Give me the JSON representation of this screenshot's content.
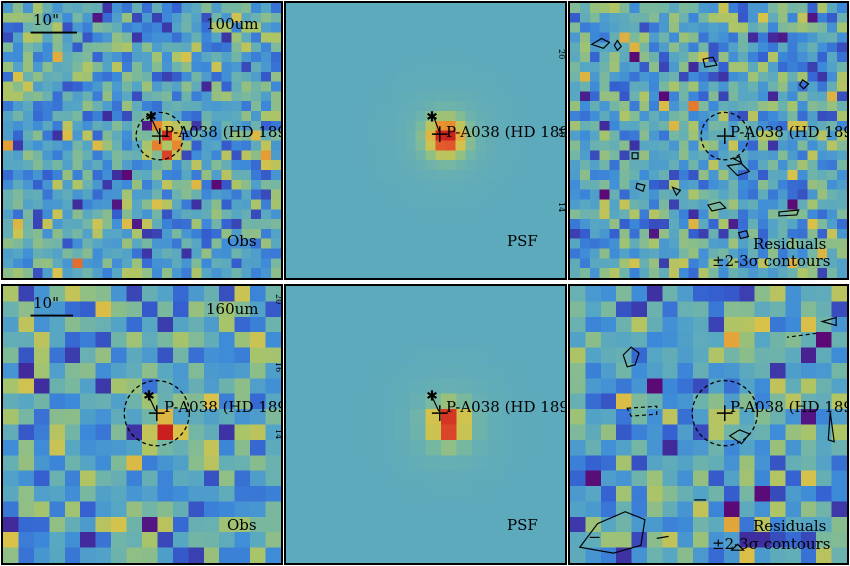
{
  "rows": [
    {
      "wavelength": "100um",
      "scale_label": "10\"",
      "panels": [
        {
          "kind": "obs",
          "label": "Obs",
          "source": "P-A038 (HD 189"
        },
        {
          "kind": "psf",
          "label": "PSF",
          "source": "P-A038 (HD 189",
          "y_ticks": [
            "20",
            "16",
            "14"
          ]
        },
        {
          "kind": "res",
          "label": "Residuals",
          "label2": "±2-3σ contours",
          "source": "P-A038 (HD 189"
        }
      ]
    },
    {
      "wavelength": "160um",
      "scale_label": "10\"",
      "panels": [
        {
          "kind": "obs",
          "label": "Obs",
          "source": "P-A038 (HD 189",
          "y_ticks": [
            "20",
            "16",
            "14"
          ]
        },
        {
          "kind": "psf",
          "label": "PSF",
          "source": "P-A038 (HD 189"
        },
        {
          "kind": "res",
          "label": "Residuals",
          "label2": "±2-3σ contours",
          "source": "P-A038 (HD 189"
        }
      ]
    }
  ],
  "colors": {
    "border": "#000000",
    "colormap": [
      "#5b0a75",
      "#3e2fa0",
      "#3560d0",
      "#3d8ad9",
      "#56a6c4",
      "#78b8a0",
      "#a8c46a",
      "#d8c24a",
      "#e89630",
      "#e0502a",
      "#c8201e"
    ]
  }
}
